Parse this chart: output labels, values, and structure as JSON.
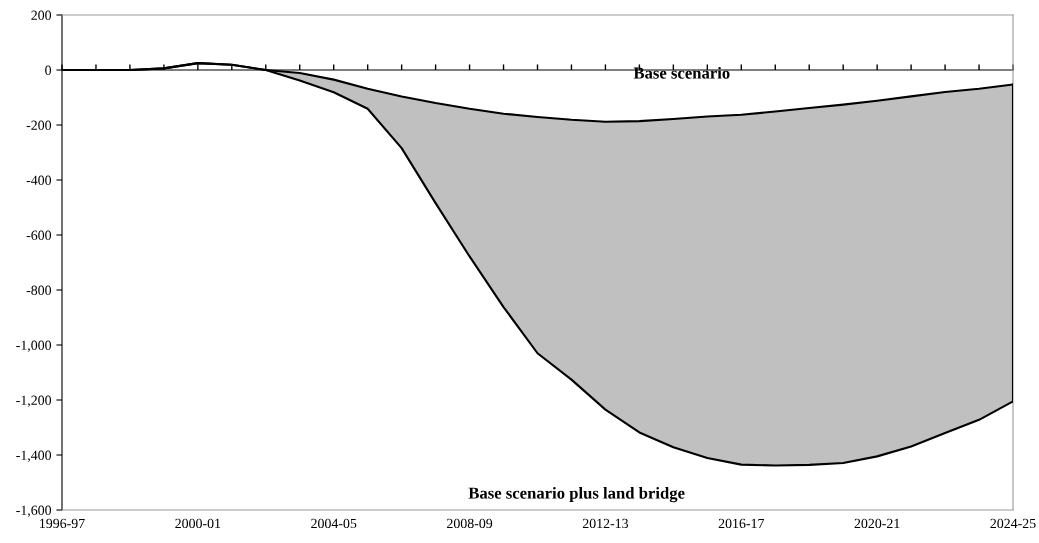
{
  "chart_data": {
    "type": "line",
    "categories": [
      "1996-97",
      null,
      null,
      null,
      "2000-01",
      null,
      null,
      null,
      "2004-05",
      null,
      null,
      null,
      "2008-09",
      null,
      null,
      null,
      "2012-13",
      null,
      null,
      null,
      "2016-17",
      null,
      null,
      null,
      "2020-21",
      null,
      null,
      null,
      "2024-25"
    ],
    "series": [
      {
        "name": "Base scenario",
        "color": "#000000",
        "values": [
          0,
          0,
          0,
          6,
          25,
          19,
          0,
          -11,
          -35,
          -68,
          -96,
          -120,
          -141,
          -159,
          -171,
          -181,
          -188,
          -186,
          -178,
          -169,
          -163,
          -151,
          -138,
          -126,
          -112,
          -96,
          -80,
          -68,
          -53
        ]
      },
      {
        "name": "Base scenario plus land bridge",
        "type": "area",
        "color": "#c0c0c0",
        "values": [
          0,
          0,
          0,
          6,
          25,
          19,
          0,
          -38,
          -81,
          -141,
          -284,
          -484,
          -678,
          -862,
          -1030,
          -1126,
          -1235,
          -1318,
          -1372,
          -1411,
          -1435,
          -1438,
          -1436,
          -1429,
          -1405,
          -1369,
          -1320,
          -1272,
          -1205
        ]
      }
    ],
    "ylim": [
      -1600,
      200
    ],
    "yticks": [
      200,
      0,
      -200,
      -400,
      -600,
      -800,
      {
        "value": -1000,
        "label": "-1,000"
      },
      {
        "value": -1200,
        "label": "-1,200"
      },
      {
        "value": -1400,
        "label": "-1,400"
      },
      {
        "value": -1600,
        "label": "-1,600"
      }
    ],
    "line_style": "solid"
  }
}
